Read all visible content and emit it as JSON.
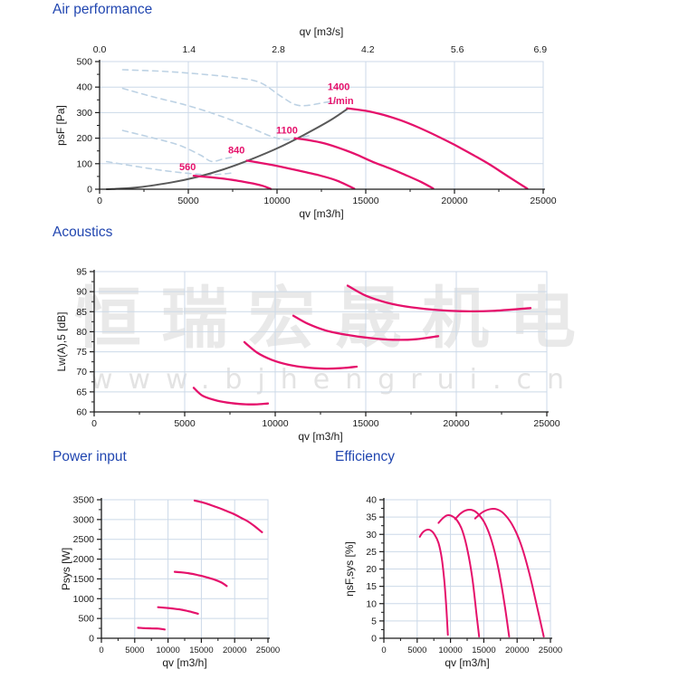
{
  "watermark": {
    "line1": "恒瑞宏晟机电",
    "line2": "www.bjhengrui.cn"
  },
  "palette": {
    "title_blue": "#2146b0",
    "curve_pink": "#e5116b",
    "curve_gray": "#595959",
    "curve_dashed_blue": "#bdd2e4",
    "grid": "#ccd9e8",
    "axis": "#1a1a1a",
    "text": "#1a1a1a"
  },
  "chart_data": [
    {
      "type": "line",
      "title": "Air performance",
      "xlabel": "qv [m3/h]",
      "ylabel": "psF [Pa]",
      "xlim": [
        0,
        25000
      ],
      "ylim": [
        0,
        500
      ],
      "xticks": [
        0,
        5000,
        10000,
        15000,
        20000,
        25000
      ],
      "xminor": 2500,
      "yticks": [
        0,
        100,
        200,
        300,
        400,
        500
      ],
      "yminor": 50,
      "grid": true,
      "top_axis": {
        "label": "qv [m3/s]",
        "ticks": [
          {
            "x": 0,
            "label": "0.0"
          },
          {
            "x": 5040,
            "label": "1.4"
          },
          {
            "x": 10080,
            "label": "2.8"
          },
          {
            "x": 15120,
            "label": "4.2"
          },
          {
            "x": 20160,
            "label": "5.6"
          },
          {
            "x": 24840,
            "label": "6.9"
          }
        ]
      },
      "series": [
        {
          "name": "aux-dashed-1",
          "color": "#bdd2e4",
          "width": 1.6,
          "dash": "6 5",
          "points": [
            [
              1300,
              468
            ],
            [
              3500,
              462
            ],
            [
              5500,
              452
            ],
            [
              7500,
              438
            ],
            [
              9000,
              419
            ],
            [
              10200,
              365
            ],
            [
              11000,
              332
            ],
            [
              11700,
              328
            ],
            [
              12800,
              341
            ],
            [
              13300,
              342
            ]
          ]
        },
        {
          "name": "aux-dashed-2",
          "color": "#bdd2e4",
          "width": 1.6,
          "dash": "6 5",
          "points": [
            [
              1300,
              395
            ],
            [
              3000,
              362
            ],
            [
              5000,
              327
            ],
            [
              7000,
              282
            ],
            [
              8500,
              241
            ],
            [
              9700,
              206
            ],
            [
              10500,
              194
            ],
            [
              11300,
              202
            ],
            [
              12000,
              213
            ]
          ]
        },
        {
          "name": "aux-dashed-3",
          "color": "#bdd2e4",
          "width": 1.6,
          "dash": "6 5",
          "points": [
            [
              1300,
              230
            ],
            [
              3000,
              201
            ],
            [
              4500,
              172
            ],
            [
              5700,
              133
            ],
            [
              6300,
              109
            ],
            [
              7000,
              119
            ],
            [
              7600,
              127
            ]
          ]
        },
        {
          "name": "aux-dashed-4",
          "color": "#bdd2e4",
          "width": 1.6,
          "dash": "6 5",
          "points": [
            [
              400,
              108
            ],
            [
              2000,
              90
            ],
            [
              3500,
              74
            ],
            [
              5000,
              62
            ],
            [
              6200,
              57
            ],
            [
              7000,
              60
            ],
            [
              7400,
              63
            ]
          ]
        },
        {
          "name": "system-resistance-curve",
          "color": "#595959",
          "width": 2,
          "points": [
            [
              400,
              0
            ],
            [
              2000,
              6
            ],
            [
              4000,
              26
            ],
            [
              5500,
              48
            ],
            [
              7000,
              78
            ],
            [
              8500,
              116
            ],
            [
              10000,
              160
            ],
            [
              11500,
              212
            ],
            [
              13000,
              270
            ],
            [
              13950,
              314
            ]
          ]
        },
        {
          "name": "fan-curve-560",
          "color": "#e5116b",
          "width": 2.3,
          "points": [
            [
              5300,
              53
            ],
            [
              5700,
              50
            ],
            [
              6200,
              47
            ],
            [
              7000,
              41
            ],
            [
              7800,
              33
            ],
            [
              8600,
              23
            ],
            [
              9200,
              13
            ],
            [
              9650,
              1
            ]
          ]
        },
        {
          "name": "fan-curve-840",
          "color": "#e5116b",
          "width": 2.3,
          "points": [
            [
              8300,
              112
            ],
            [
              9000,
              104
            ],
            [
              9800,
              94
            ],
            [
              10700,
              81
            ],
            [
              11600,
              67
            ],
            [
              12500,
              52
            ],
            [
              13400,
              33
            ],
            [
              14350,
              2
            ]
          ]
        },
        {
          "name": "fan-curve-1100",
          "color": "#e5116b",
          "width": 2.3,
          "points": [
            [
              11000,
              200
            ],
            [
              11800,
              192
            ],
            [
              12700,
              179
            ],
            [
              13600,
              159
            ],
            [
              14500,
              135
            ],
            [
              15400,
              107
            ],
            [
              16300,
              83
            ],
            [
              17200,
              57
            ],
            [
              18100,
              29
            ],
            [
              18800,
              3
            ]
          ]
        },
        {
          "name": "fan-curve-1400",
          "color": "#e5116b",
          "width": 2.3,
          "points": [
            [
              13950,
              317
            ],
            [
              15000,
              307
            ],
            [
              16000,
              291
            ],
            [
              17000,
              269
            ],
            [
              18000,
              241
            ],
            [
              19000,
              209
            ],
            [
              20000,
              174
            ],
            [
              21000,
              136
            ],
            [
              22000,
              96
            ],
            [
              23000,
              51
            ],
            [
              24100,
              2
            ]
          ]
        }
      ],
      "annotations": [
        {
          "text": "560",
          "x": 4490,
          "y": 75
        },
        {
          "text": "840",
          "x": 7245,
          "y": 140
        },
        {
          "text": "1100",
          "x": 9950,
          "y": 218
        },
        {
          "text": "1400",
          "x": 12850,
          "y": 388
        },
        {
          "text": "1/min",
          "x": 12850,
          "y": 333
        }
      ]
    },
    {
      "type": "line",
      "title": "Acoustics",
      "xlabel": "qv [m3/h]",
      "ylabel": "Lw(A),5 [dB]",
      "xlim": [
        0,
        25000
      ],
      "ylim": [
        60,
        95
      ],
      "xticks": [
        0,
        5000,
        10000,
        15000,
        20000,
        25000
      ],
      "xminor": 2500,
      "yticks": [
        60,
        65,
        70,
        75,
        80,
        85,
        90,
        95
      ],
      "yminor": 2.5,
      "grid": true,
      "series": [
        {
          "name": "noise-560",
          "color": "#e5116b",
          "width": 2.3,
          "points": [
            [
              5500,
              66
            ],
            [
              6000,
              64
            ],
            [
              6800,
              62.8
            ],
            [
              7600,
              62.2
            ],
            [
              8400,
              61.9
            ],
            [
              9000,
              61.9
            ],
            [
              9600,
              62.1
            ]
          ]
        },
        {
          "name": "noise-840",
          "color": "#e5116b",
          "width": 2.3,
          "points": [
            [
              8300,
              77.4
            ],
            [
              9000,
              74.8
            ],
            [
              9800,
              73
            ],
            [
              10700,
              71.8
            ],
            [
              11700,
              71.1
            ],
            [
              12700,
              70.8
            ],
            [
              13600,
              70.9
            ],
            [
              14500,
              71.3
            ]
          ]
        },
        {
          "name": "noise-1100",
          "color": "#e5116b",
          "width": 2.3,
          "points": [
            [
              11000,
              84
            ],
            [
              11800,
              82
            ],
            [
              12800,
              80.3
            ],
            [
              14000,
              79.2
            ],
            [
              15300,
              78.4
            ],
            [
              16500,
              78
            ],
            [
              17700,
              78.1
            ],
            [
              19000,
              78.9
            ]
          ]
        },
        {
          "name": "noise-1400",
          "color": "#e5116b",
          "width": 2.3,
          "points": [
            [
              14000,
              91.5
            ],
            [
              15000,
              89
            ],
            [
              16200,
              87.2
            ],
            [
              17500,
              86.1
            ],
            [
              19000,
              85.4
            ],
            [
              20500,
              85.1
            ],
            [
              22000,
              85.2
            ],
            [
              24100,
              85.9
            ]
          ]
        }
      ],
      "annotations": []
    },
    {
      "type": "line",
      "title": "Power input",
      "xlabel": "qv [m3/h]",
      "ylabel": "Psys [W]",
      "xlim": [
        0,
        25000
      ],
      "ylim": [
        0,
        3500
      ],
      "xticks": [
        0,
        5000,
        10000,
        15000,
        20000,
        25000
      ],
      "xminor": 2500,
      "yticks": [
        0,
        500,
        1000,
        1500,
        2000,
        2500,
        3000,
        3500
      ],
      "yminor": 250,
      "grid": true,
      "series": [
        {
          "name": "power-560",
          "color": "#e5116b",
          "width": 2.2,
          "points": [
            [
              5500,
              265
            ],
            [
              6500,
              255
            ],
            [
              7500,
              250
            ],
            [
              8500,
              245
            ],
            [
              9500,
              222
            ]
          ]
        },
        {
          "name": "power-840",
          "color": "#e5116b",
          "width": 2.2,
          "points": [
            [
              8500,
              785
            ],
            [
              9500,
              770
            ],
            [
              10500,
              755
            ],
            [
              11500,
              735
            ],
            [
              12500,
              705
            ],
            [
              13500,
              665
            ],
            [
              14500,
              620
            ]
          ]
        },
        {
          "name": "power-1100",
          "color": "#e5116b",
          "width": 2.2,
          "points": [
            [
              11000,
              1680
            ],
            [
              12000,
              1665
            ],
            [
              13000,
              1645
            ],
            [
              14000,
              1615
            ],
            [
              15000,
              1575
            ],
            [
              16000,
              1530
            ],
            [
              17000,
              1480
            ],
            [
              18000,
              1410
            ],
            [
              18800,
              1320
            ]
          ]
        },
        {
          "name": "power-1400",
          "color": "#e5116b",
          "width": 2.2,
          "points": [
            [
              14000,
              3480
            ],
            [
              15000,
              3440
            ],
            [
              16000,
              3390
            ],
            [
              17000,
              3330
            ],
            [
              18000,
              3270
            ],
            [
              19000,
              3200
            ],
            [
              20000,
              3130
            ],
            [
              21000,
              3040
            ],
            [
              22000,
              2950
            ],
            [
              23000,
              2830
            ],
            [
              24100,
              2680
            ]
          ]
        }
      ],
      "annotations": []
    },
    {
      "type": "line",
      "title": "Efficiency",
      "xlabel": "qv [m3/h]",
      "ylabel": "ηsF,sys [%]",
      "xlim": [
        0,
        25000
      ],
      "ylim": [
        0,
        40
      ],
      "xticks": [
        0,
        5000,
        10000,
        15000,
        20000,
        25000
      ],
      "xminor": 2500,
      "yticks": [
        0,
        5,
        10,
        15,
        20,
        25,
        30,
        35,
        40
      ],
      "yminor": 2.5,
      "grid": true,
      "series": [
        {
          "name": "eff-560",
          "color": "#e5116b",
          "width": 2,
          "points": [
            [
              5400,
              29.3
            ],
            [
              5800,
              30.5
            ],
            [
              6400,
              31.3
            ],
            [
              7000,
              31.2
            ],
            [
              7600,
              30
            ],
            [
              8200,
              27.5
            ],
            [
              8700,
              23
            ],
            [
              9100,
              16
            ],
            [
              9400,
              8
            ],
            [
              9600,
              1
            ]
          ]
        },
        {
          "name": "eff-840",
          "color": "#e5116b",
          "width": 2,
          "points": [
            [
              8200,
              33.3
            ],
            [
              8800,
              34.6
            ],
            [
              9500,
              35.5
            ],
            [
              10200,
              35.3
            ],
            [
              11000,
              34
            ],
            [
              11800,
              31
            ],
            [
              12600,
              25
            ],
            [
              13300,
              17
            ],
            [
              13900,
              7
            ],
            [
              14300,
              0.5
            ]
          ]
        },
        {
          "name": "eff-1100",
          "color": "#e5116b",
          "width": 2,
          "points": [
            [
              10700,
              34.4
            ],
            [
              11500,
              36
            ],
            [
              12400,
              37
            ],
            [
              13300,
              37
            ],
            [
              14200,
              35.8
            ],
            [
              15200,
              33
            ],
            [
              16200,
              28
            ],
            [
              17200,
              20
            ],
            [
              18100,
              10
            ],
            [
              18800,
              0.5
            ]
          ]
        },
        {
          "name": "eff-1400",
          "color": "#e5116b",
          "width": 2,
          "points": [
            [
              13700,
              34.6
            ],
            [
              14800,
              36.4
            ],
            [
              16000,
              37.3
            ],
            [
              17000,
              37.2
            ],
            [
              18000,
              36
            ],
            [
              19200,
              33
            ],
            [
              20500,
              27.5
            ],
            [
              21800,
              19
            ],
            [
              23000,
              9
            ],
            [
              24000,
              0.5
            ]
          ]
        }
      ],
      "annotations": []
    }
  ]
}
